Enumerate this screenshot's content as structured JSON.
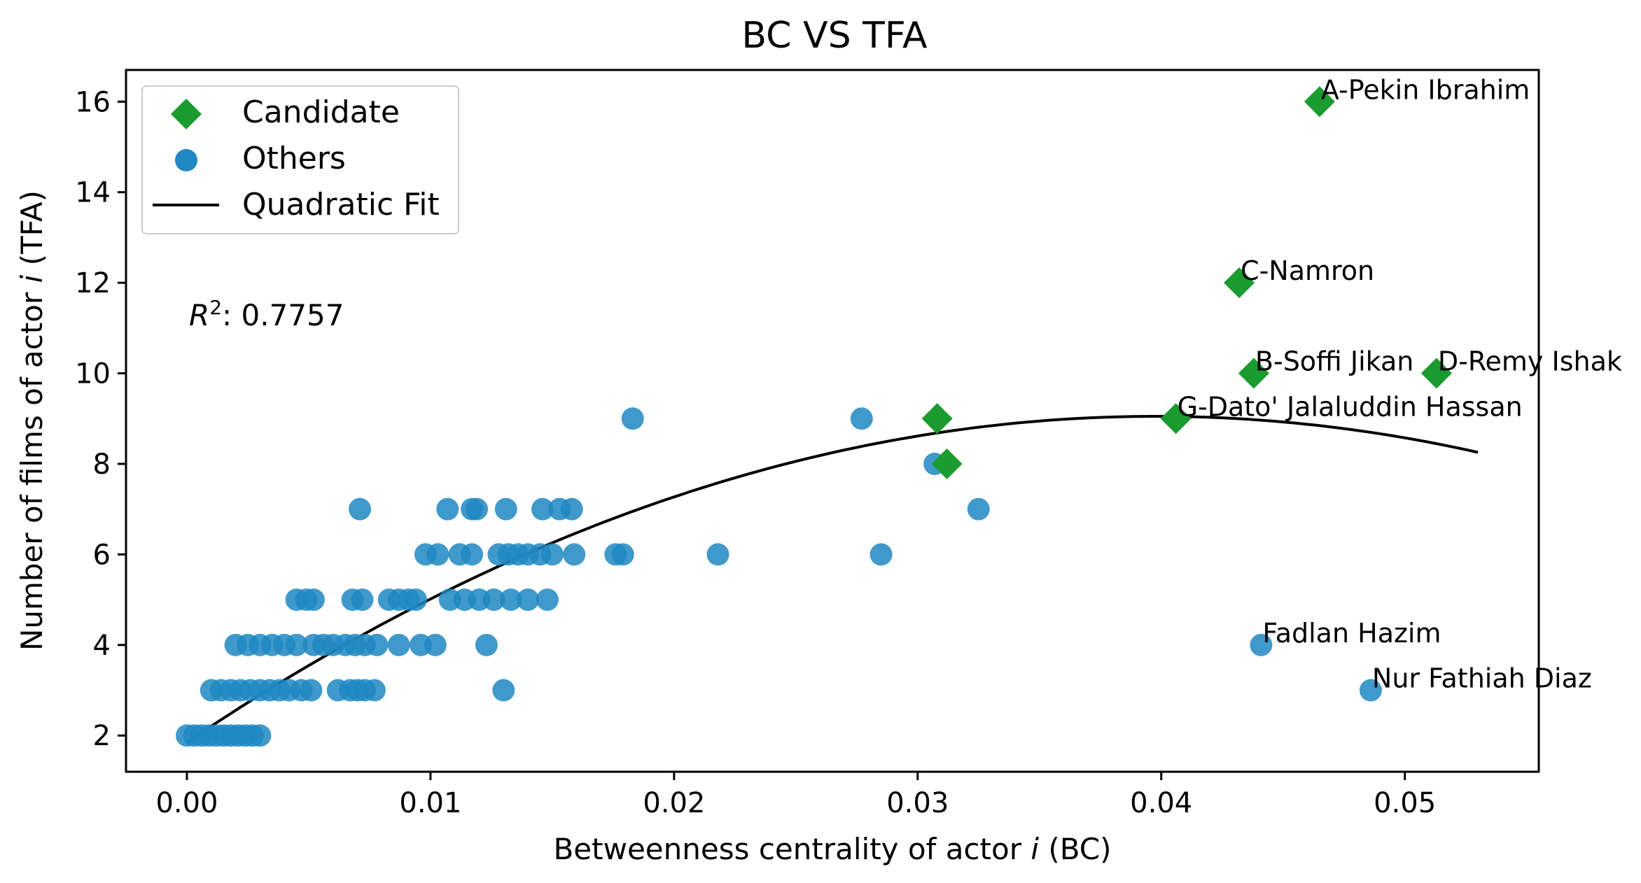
{
  "chart_data": {
    "type": "scatter",
    "title": "BC VS TFA",
    "xlabel_prefix": "Betweenness centrality of actor ",
    "xlabel_var": "i",
    "xlabel_suffix": " (BC)",
    "ylabel_prefix": "Number of films of actor ",
    "ylabel_var": "i",
    "ylabel_suffix": " (TFA)",
    "xlim": [
      -0.0025,
      0.0555
    ],
    "ylim": [
      1.2,
      16.7
    ],
    "xticks": [
      0.0,
      0.01,
      0.02,
      0.03,
      0.04,
      0.05
    ],
    "xtick_labels": [
      "0.00",
      "0.01",
      "0.02",
      "0.03",
      "0.04",
      "0.05"
    ],
    "yticks": [
      2,
      4,
      6,
      8,
      10,
      12,
      14,
      16
    ],
    "ytick_labels": [
      "2",
      "4",
      "6",
      "8",
      "10",
      "12",
      "14",
      "16"
    ],
    "grid": false,
    "legend_position": "top-left",
    "r_squared": {
      "label": "R",
      "superscript": "2",
      "value": ": 0.7757"
    },
    "colors": {
      "candidate": "#1a9b2f",
      "others": "#1f87c2",
      "fit": "#000000"
    },
    "series": [
      {
        "name": "Candidate",
        "marker": "diamond",
        "points": [
          {
            "x": 0.0465,
            "y": 16,
            "label": "A-Pekin Ibrahim"
          },
          {
            "x": 0.0432,
            "y": 12,
            "label": "C-Namron"
          },
          {
            "x": 0.0438,
            "y": 10,
            "label": "B-Soffi Jikan"
          },
          {
            "x": 0.0513,
            "y": 10,
            "label": "D-Remy Ishak"
          },
          {
            "x": 0.0406,
            "y": 9,
            "label": "G-Dato' Jalaluddin Hassan"
          },
          {
            "x": 0.0308,
            "y": 9,
            "label": ""
          },
          {
            "x": 0.0312,
            "y": 8,
            "label": ""
          }
        ]
      },
      {
        "name": "Others",
        "marker": "circle",
        "points": [
          {
            "x": 0.0183,
            "y": 9
          },
          {
            "x": 0.0277,
            "y": 9
          },
          {
            "x": 0.0307,
            "y": 8
          },
          {
            "x": 0.0071,
            "y": 7
          },
          {
            "x": 0.0107,
            "y": 7
          },
          {
            "x": 0.0117,
            "y": 7
          },
          {
            "x": 0.0119,
            "y": 7
          },
          {
            "x": 0.0131,
            "y": 7
          },
          {
            "x": 0.0146,
            "y": 7
          },
          {
            "x": 0.0153,
            "y": 7
          },
          {
            "x": 0.0158,
            "y": 7
          },
          {
            "x": 0.0325,
            "y": 7
          },
          {
            "x": 0.0098,
            "y": 6
          },
          {
            "x": 0.0103,
            "y": 6
          },
          {
            "x": 0.0112,
            "y": 6
          },
          {
            "x": 0.0117,
            "y": 6
          },
          {
            "x": 0.0128,
            "y": 6
          },
          {
            "x": 0.0132,
            "y": 6
          },
          {
            "x": 0.0136,
            "y": 6
          },
          {
            "x": 0.014,
            "y": 6
          },
          {
            "x": 0.0145,
            "y": 6
          },
          {
            "x": 0.015,
            "y": 6
          },
          {
            "x": 0.0159,
            "y": 6
          },
          {
            "x": 0.0176,
            "y": 6
          },
          {
            "x": 0.0179,
            "y": 6
          },
          {
            "x": 0.0218,
            "y": 6
          },
          {
            "x": 0.0285,
            "y": 6
          },
          {
            "x": 0.0045,
            "y": 5
          },
          {
            "x": 0.0049,
            "y": 5
          },
          {
            "x": 0.0052,
            "y": 5
          },
          {
            "x": 0.0068,
            "y": 5
          },
          {
            "x": 0.0072,
            "y": 5
          },
          {
            "x": 0.0083,
            "y": 5
          },
          {
            "x": 0.0087,
            "y": 5
          },
          {
            "x": 0.0091,
            "y": 5
          },
          {
            "x": 0.0094,
            "y": 5
          },
          {
            "x": 0.0108,
            "y": 5
          },
          {
            "x": 0.0114,
            "y": 5
          },
          {
            "x": 0.012,
            "y": 5
          },
          {
            "x": 0.0126,
            "y": 5
          },
          {
            "x": 0.0133,
            "y": 5
          },
          {
            "x": 0.014,
            "y": 5
          },
          {
            "x": 0.0148,
            "y": 5
          },
          {
            "x": 0.002,
            "y": 4
          },
          {
            "x": 0.0025,
            "y": 4
          },
          {
            "x": 0.003,
            "y": 4
          },
          {
            "x": 0.0035,
            "y": 4
          },
          {
            "x": 0.004,
            "y": 4
          },
          {
            "x": 0.0045,
            "y": 4
          },
          {
            "x": 0.0052,
            "y": 4
          },
          {
            "x": 0.0056,
            "y": 4
          },
          {
            "x": 0.006,
            "y": 4
          },
          {
            "x": 0.0065,
            "y": 4
          },
          {
            "x": 0.0069,
            "y": 4
          },
          {
            "x": 0.0073,
            "y": 4
          },
          {
            "x": 0.0078,
            "y": 4
          },
          {
            "x": 0.0087,
            "y": 4
          },
          {
            "x": 0.0096,
            "y": 4
          },
          {
            "x": 0.0102,
            "y": 4
          },
          {
            "x": 0.0123,
            "y": 4
          },
          {
            "x": 0.001,
            "y": 3
          },
          {
            "x": 0.0014,
            "y": 3
          },
          {
            "x": 0.0018,
            "y": 3
          },
          {
            "x": 0.0022,
            "y": 3
          },
          {
            "x": 0.0026,
            "y": 3
          },
          {
            "x": 0.003,
            "y": 3
          },
          {
            "x": 0.0034,
            "y": 3
          },
          {
            "x": 0.0038,
            "y": 3
          },
          {
            "x": 0.0042,
            "y": 3
          },
          {
            "x": 0.0047,
            "y": 3
          },
          {
            "x": 0.0051,
            "y": 3
          },
          {
            "x": 0.0062,
            "y": 3
          },
          {
            "x": 0.0067,
            "y": 3
          },
          {
            "x": 0.007,
            "y": 3
          },
          {
            "x": 0.0073,
            "y": 3
          },
          {
            "x": 0.0077,
            "y": 3
          },
          {
            "x": 0.013,
            "y": 3
          },
          {
            "x": 0.0,
            "y": 2
          },
          {
            "x": 0.0003,
            "y": 2
          },
          {
            "x": 0.0006,
            "y": 2
          },
          {
            "x": 0.0009,
            "y": 2
          },
          {
            "x": 0.0012,
            "y": 2
          },
          {
            "x": 0.0015,
            "y": 2
          },
          {
            "x": 0.0018,
            "y": 2
          },
          {
            "x": 0.0021,
            "y": 2
          },
          {
            "x": 0.0024,
            "y": 2
          },
          {
            "x": 0.0027,
            "y": 2
          },
          {
            "x": 0.003,
            "y": 2
          },
          {
            "x": 0.0441,
            "y": 4,
            "label": "Fadlan Hazim"
          },
          {
            "x": 0.0486,
            "y": 3,
            "label": "Nur Fathiah Diaz"
          }
        ]
      },
      {
        "name": "Quadratic Fit",
        "marker": "line",
        "fit": {
          "a": -4550,
          "b": 362,
          "c": 1.85,
          "x_start": 0.0,
          "x_end": 0.053
        }
      }
    ]
  }
}
